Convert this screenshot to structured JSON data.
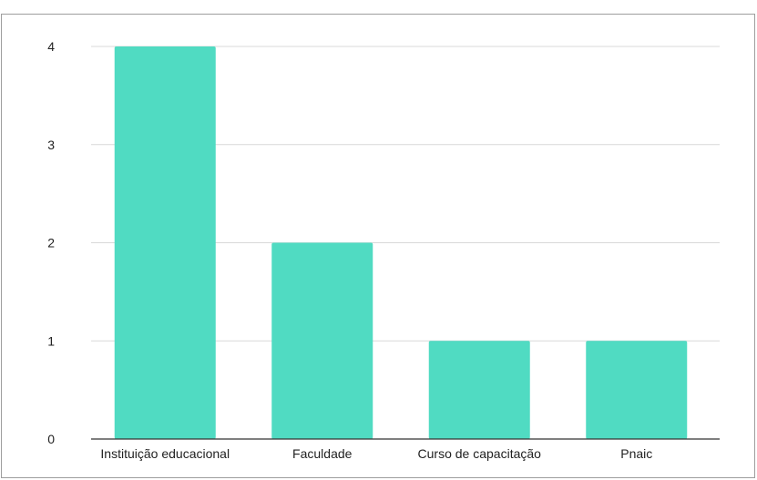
{
  "chart_data": {
    "type": "bar",
    "categories": [
      "Instituição educacional",
      "Faculdade",
      "Curso de capacitação",
      "Pnaic"
    ],
    "values": [
      4,
      2,
      1,
      1
    ],
    "title": "",
    "xlabel": "",
    "ylabel": "",
    "ylim": [
      0,
      4
    ],
    "yticks": [
      "0",
      "1",
      "2",
      "3",
      "4"
    ],
    "grid": true,
    "legend": "none",
    "bar_color": "#50dbc2",
    "grid_color": "#d9d9d9",
    "axis_color": "#333333"
  }
}
